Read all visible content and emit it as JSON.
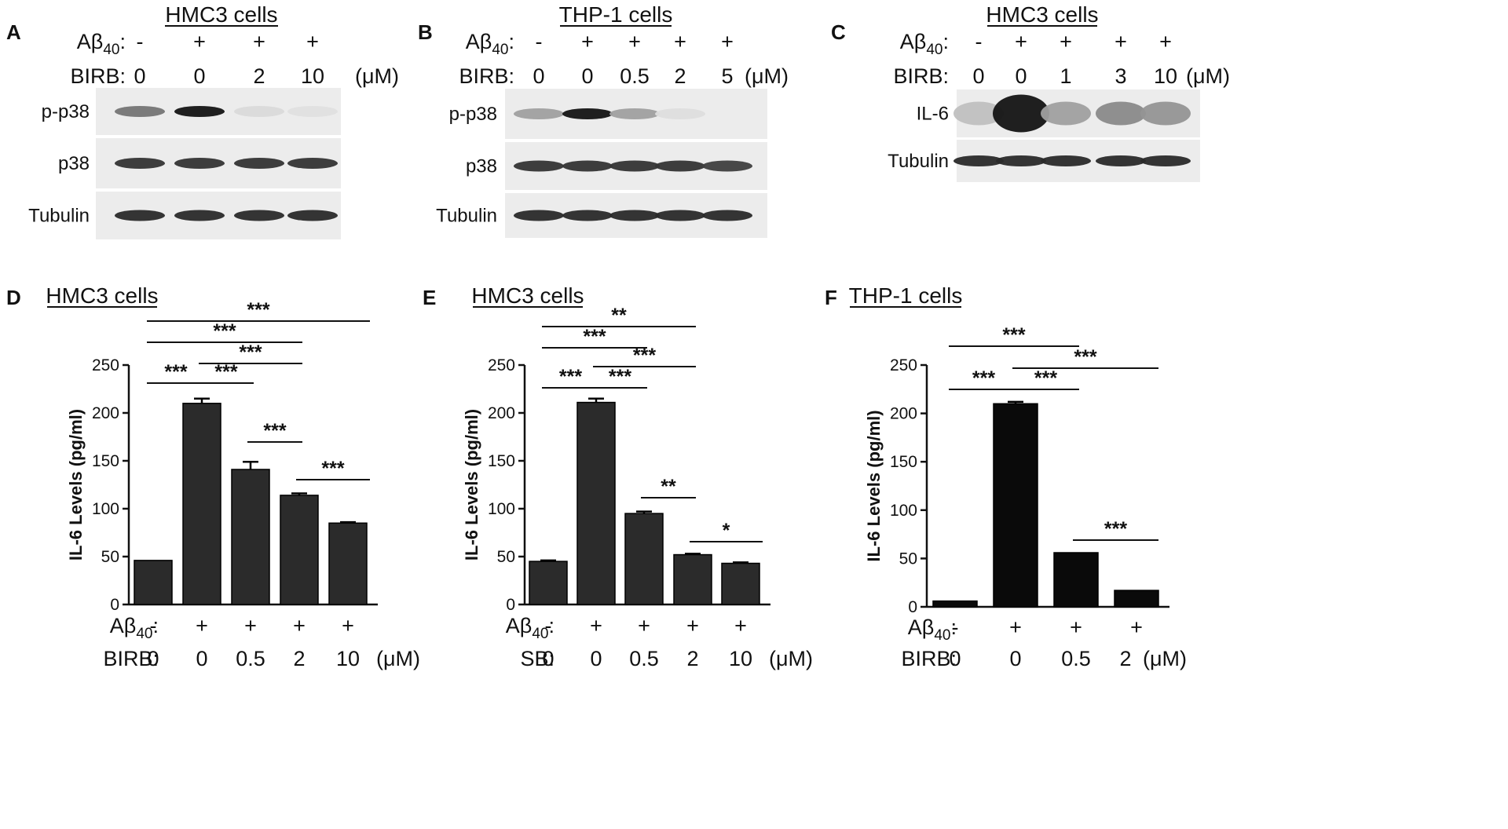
{
  "panels": {
    "A": {
      "letter": "A",
      "title": "HMC3 cells",
      "row1_label": "Aβ",
      "row1_sub": "40",
      "row1_suffix": ":",
      "row1_values": [
        "-",
        "+",
        "+",
        "+"
      ],
      "row2_label": "BIRB:",
      "row2_values": [
        "0",
        "0",
        "2",
        "10"
      ],
      "unit": "(μM)",
      "blot_labels": [
        "p-p38",
        "p38",
        "Tubulin"
      ]
    },
    "B": {
      "letter": "B",
      "title": "THP-1 cells",
      "row1_label": "Aβ",
      "row1_sub": "40",
      "row1_suffix": ":",
      "row1_values": [
        "-",
        "+",
        "+",
        "+",
        "+"
      ],
      "row2_label": "BIRB:",
      "row2_values": [
        "0",
        "0",
        "0.5",
        "2",
        "5"
      ],
      "unit": "(μM)",
      "blot_labels": [
        "p-p38",
        "p38",
        "Tubulin"
      ]
    },
    "C": {
      "letter": "C",
      "title": "HMC3 cells",
      "row1_label": "Aβ",
      "row1_sub": "40",
      "row1_suffix": ":",
      "row1_values": [
        "-",
        "+",
        "+",
        "+",
        "+"
      ],
      "row2_label": "BIRB:",
      "row2_values": [
        "0",
        "0",
        "1",
        "3",
        "10"
      ],
      "unit": "(μM)",
      "blot_labels": [
        "IL-6",
        "Tubulin"
      ]
    }
  },
  "chart_data": [
    {
      "type": "bar",
      "letter": "D",
      "title": "HMC3 cells",
      "ylabel": "IL-6 Levels (pg/ml)",
      "ylim": [
        0,
        250
      ],
      "yticks": [
        0,
        50,
        100,
        150,
        200,
        250
      ],
      "categories": [
        "1",
        "2",
        "3",
        "4",
        "5"
      ],
      "values": [
        46,
        210,
        141,
        114,
        85
      ],
      "errors": [
        0,
        5,
        8,
        2,
        1
      ],
      "row1_label": "Aβ",
      "row1_sub": "40",
      "row1_suffix": ":",
      "row1_values": [
        "-",
        "+",
        "+",
        "+",
        "+"
      ],
      "row2_label": "BIRB:",
      "row2_values": [
        "0",
        "0",
        "0.5",
        "2",
        "10"
      ],
      "unit": "(μM)",
      "bar_color": "#2b2b2b",
      "significance": [
        {
          "from": 0,
          "to": 1,
          "label": "***"
        },
        {
          "from": 1,
          "to": 2,
          "label": "***"
        },
        {
          "from": 2,
          "to": 3,
          "label": "***"
        },
        {
          "from": 3,
          "to": 4,
          "label": "***"
        },
        {
          "from": 1,
          "to": 3,
          "label": "***"
        },
        {
          "from": 0,
          "to": 3,
          "label": "***"
        },
        {
          "from": 0,
          "to": 4,
          "label": "***"
        }
      ]
    },
    {
      "type": "bar",
      "letter": "E",
      "title": "HMC3 cells",
      "ylabel": "IL-6 Levels (pg/ml)",
      "ylim": [
        0,
        250
      ],
      "yticks": [
        0,
        50,
        100,
        150,
        200,
        250
      ],
      "categories": [
        "1",
        "2",
        "3",
        "4",
        "5"
      ],
      "values": [
        45,
        211,
        95,
        52,
        43
      ],
      "errors": [
        1,
        4,
        2,
        1,
        1
      ],
      "row1_label": "Aβ",
      "row1_sub": "40",
      "row1_suffix": ":",
      "row1_values": [
        "-",
        "+",
        "+",
        "+",
        "+"
      ],
      "row2_label": "SB:",
      "row2_values": [
        "0",
        "0",
        "0.5",
        "2",
        "10"
      ],
      "unit": "(μM)",
      "bar_color": "#2b2b2b",
      "significance": [
        {
          "from": 0,
          "to": 1,
          "label": "***"
        },
        {
          "from": 1,
          "to": 2,
          "label": "***"
        },
        {
          "from": 2,
          "to": 3,
          "label": "**"
        },
        {
          "from": 3,
          "to": 4,
          "label": "*"
        },
        {
          "from": 1,
          "to": 3,
          "label": "***"
        },
        {
          "from": 0,
          "to": 2,
          "label": "***"
        },
        {
          "from": 0,
          "to": 3,
          "label": "**"
        }
      ]
    },
    {
      "type": "bar",
      "letter": "F",
      "title": "THP-1 cells",
      "ylabel": "IL-6 Levels (pg/ml)",
      "ylim": [
        0,
        250
      ],
      "yticks": [
        0,
        50,
        100,
        150,
        200,
        250
      ],
      "categories": [
        "1",
        "2",
        "3",
        "4"
      ],
      "values": [
        6,
        210,
        56,
        17
      ],
      "errors": [
        0,
        2,
        0,
        0
      ],
      "row1_label": "Aβ",
      "row1_sub": "40",
      "row1_suffix": ":",
      "row1_values": [
        "-",
        "+",
        "+",
        "+"
      ],
      "row2_label": "BIRB:",
      "row2_values": [
        "0",
        "0",
        "0.5",
        "2"
      ],
      "unit": "(μM)",
      "bar_color": "#0a0a0a",
      "significance": [
        {
          "from": 0,
          "to": 1,
          "label": "***"
        },
        {
          "from": 1,
          "to": 2,
          "label": "***"
        },
        {
          "from": 2,
          "to": 3,
          "label": "***"
        },
        {
          "from": 0,
          "to": 2,
          "label": "***"
        },
        {
          "from": 1,
          "to": 3,
          "label": "***"
        }
      ]
    }
  ]
}
